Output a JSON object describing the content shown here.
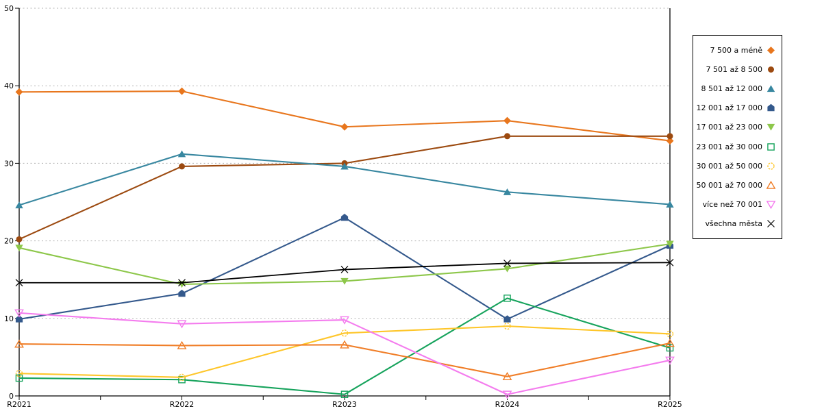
{
  "chart_data": {
    "type": "line",
    "title": "",
    "xlabel": "",
    "ylabel": "",
    "x_categories": [
      "R2021",
      "R2022",
      "R2023",
      "R2024",
      "R2025"
    ],
    "ylim": [
      0,
      50
    ],
    "y_ticks": [
      0,
      10,
      20,
      30,
      40,
      50
    ],
    "grid": "horizontal-dashed",
    "legend_position": "right-outside",
    "colors": {
      "grid_line": "#b3b3b3",
      "axis_line": "#000000",
      "background": "#ffffff",
      "legend_border": "#000000"
    },
    "series": [
      {
        "name": "7 500 a méně",
        "color": "#E8761D",
        "marker": "diamond",
        "marker_fill": "solid",
        "values": [
          39.2,
          39.3,
          34.7,
          35.5,
          32.9
        ]
      },
      {
        "name": "7 501 až 8 500",
        "color": "#9C4A10",
        "marker": "circle",
        "marker_fill": "solid",
        "values": [
          20.2,
          29.6,
          30.0,
          33.5,
          33.5
        ]
      },
      {
        "name": "8 501 až 12 000",
        "color": "#3887A0",
        "marker": "triangle-up",
        "marker_fill": "solid",
        "values": [
          24.6,
          31.2,
          29.6,
          26.3,
          24.7
        ]
      },
      {
        "name": "12 001 až 17 000",
        "color": "#34598C",
        "marker": "pentagon",
        "marker_fill": "solid",
        "values": [
          9.9,
          13.2,
          23.0,
          9.9,
          19.4
        ]
      },
      {
        "name": "17 001 až 23 000",
        "color": "#8DC74A",
        "marker": "triangle-down",
        "marker_fill": "solid",
        "values": [
          19.1,
          14.4,
          14.8,
          16.4,
          19.6
        ]
      },
      {
        "name": "23 001 až 30 000",
        "color": "#16A35C",
        "marker": "square",
        "marker_fill": "open",
        "values": [
          2.3,
          2.1,
          0.2,
          12.6,
          6.2
        ]
      },
      {
        "name": "30 001 až 50 000",
        "color": "#FEC62A",
        "marker": "circle",
        "marker_fill": "open",
        "values": [
          2.9,
          2.4,
          8.1,
          9.0,
          8.0
        ]
      },
      {
        "name": "50 001 až 70 000",
        "color": "#F07E28",
        "marker": "triangle-up",
        "marker_fill": "open",
        "values": [
          6.7,
          6.5,
          6.6,
          2.5,
          6.8
        ]
      },
      {
        "name": "více než 70 001",
        "color": "#F47CEE",
        "marker": "triangle-down",
        "marker_fill": "open",
        "values": [
          10.7,
          9.3,
          9.8,
          0.2,
          4.6
        ]
      },
      {
        "name": "všechna města",
        "color": "#000000",
        "marker": "x",
        "marker_fill": "line",
        "values": [
          14.6,
          14.6,
          16.3,
          17.1,
          17.2
        ]
      }
    ]
  }
}
